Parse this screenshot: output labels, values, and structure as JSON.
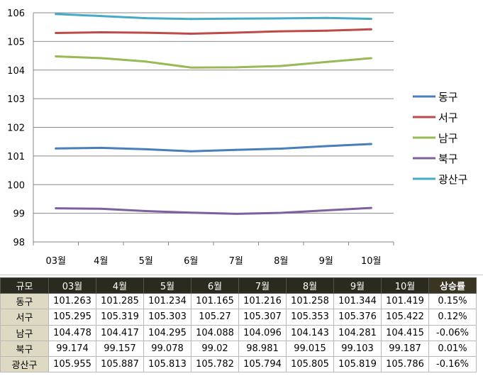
{
  "chart_data": {
    "type": "line",
    "categories": [
      "03월",
      "4월",
      "5월",
      "6월",
      "7월",
      "8월",
      "9월",
      "10월"
    ],
    "ylim": [
      98,
      106
    ],
    "yticks": [
      "98",
      "99",
      "100",
      "101",
      "102",
      "103",
      "104",
      "105",
      "106"
    ],
    "grid": true,
    "legend_position": "right",
    "series": [
      {
        "name": "동구",
        "color": "#4a7ebb",
        "values": [
          101.263,
          101.285,
          101.234,
          101.165,
          101.216,
          101.258,
          101.344,
          101.419
        ]
      },
      {
        "name": "서구",
        "color": "#be4b48",
        "values": [
          105.295,
          105.319,
          105.303,
          105.27,
          105.307,
          105.353,
          105.376,
          105.422
        ]
      },
      {
        "name": "남구",
        "color": "#98b954",
        "values": [
          104.478,
          104.417,
          104.295,
          104.088,
          104.096,
          104.143,
          104.281,
          104.415
        ]
      },
      {
        "name": "북구",
        "color": "#7d60a0",
        "values": [
          99.174,
          99.157,
          99.078,
          99.02,
          98.981,
          99.015,
          99.103,
          99.187
        ]
      },
      {
        "name": "광산구",
        "color": "#46aac5",
        "values": [
          105.955,
          105.887,
          105.813,
          105.782,
          105.794,
          105.805,
          105.819,
          105.786
        ]
      }
    ]
  },
  "table": {
    "headers": [
      "규모",
      "03월",
      "4월",
      "5월",
      "6월",
      "7월",
      "8월",
      "9월",
      "10월",
      "상승률"
    ],
    "rows": [
      [
        "동구",
        "101.263",
        "101.285",
        "101.234",
        "101.165",
        "101.216",
        "101.258",
        "101.344",
        "101.419",
        "0.15%"
      ],
      [
        "서구",
        "105.295",
        "105.319",
        "105.303",
        "105.27",
        "105.307",
        "105.353",
        "105.376",
        "105.422",
        "0.12%"
      ],
      [
        "남구",
        "104.478",
        "104.417",
        "104.295",
        "104.088",
        "104.096",
        "104.143",
        "104.281",
        "104.415",
        "-0.06%"
      ],
      [
        "북구",
        "99.174",
        "99.157",
        "99.078",
        "99.02",
        "98.981",
        "99.015",
        "99.103",
        "99.187",
        "0.01%"
      ],
      [
        "광산구",
        "105.955",
        "105.887",
        "105.813",
        "105.782",
        "105.794",
        "105.805",
        "105.819",
        "105.786",
        "-0.16%"
      ]
    ]
  }
}
